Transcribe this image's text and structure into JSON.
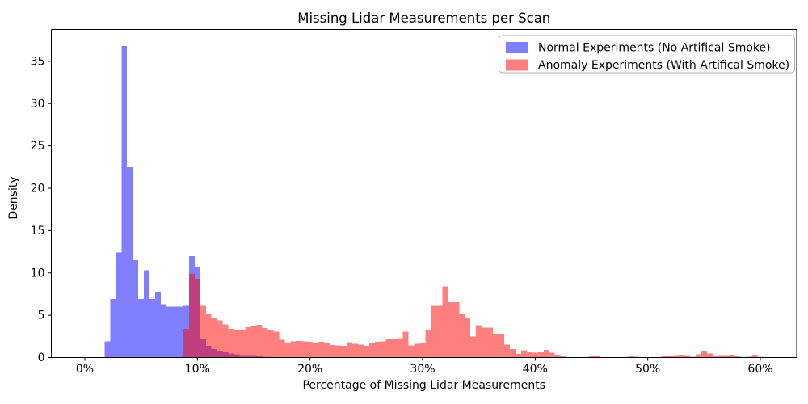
{
  "chart_data": {
    "type": "histogram",
    "title": "Missing Lidar Measurements per Scan",
    "xlabel": "Percentage of Missing Lidar Measurements",
    "ylabel": "Density",
    "grid": false,
    "xlim_pct": [
      -3,
      63.2
    ],
    "ylim": [
      0,
      38.8
    ],
    "xticks": {
      "values": [
        0,
        10,
        20,
        30,
        40,
        50,
        60
      ],
      "labels": [
        "0%",
        "10%",
        "20%",
        "30%",
        "40%",
        "50%",
        "60%"
      ]
    },
    "yticks": [
      0,
      5,
      10,
      15,
      20,
      25,
      30,
      35
    ],
    "bar_alpha": 0.5,
    "legend": {
      "position": "upper right",
      "entries": [
        {
          "label": "Normal Experiments (No Artifical Smoke)",
          "color": "#0000ff"
        },
        {
          "label": "Anomaly Experiments (With Artifical Smoke)",
          "color": "#ff0000"
        }
      ]
    },
    "series": [
      {
        "name": "Normal Experiments (No Artifical Smoke)",
        "color": "#0000ff",
        "bin_start_pct": 1.75,
        "bin_width_pct": 0.5,
        "densities": [
          1.9,
          6.9,
          12.4,
          36.8,
          22.5,
          11.5,
          6.9,
          10.3,
          6.9,
          7.7,
          6.3,
          6.0,
          6.0,
          6.0,
          6.1,
          12.0,
          10.7,
          2.2,
          1.4,
          1.0,
          0.8,
          0.6,
          0.5,
          0.4,
          0.3,
          0.3,
          0.3,
          0.2
        ]
      },
      {
        "name": "Anomaly Experiments (With Artifical Smoke)",
        "color": "#ff0000",
        "bin_start_pct": 8.75,
        "bin_width_pct": 0.5,
        "densities": [
          3.4,
          9.9,
          9.3,
          6.1,
          5.1,
          4.65,
          4.4,
          3.9,
          3.4,
          3.2,
          3.3,
          3.6,
          3.7,
          3.85,
          3.5,
          3.3,
          3.05,
          2.1,
          1.7,
          1.9,
          1.95,
          1.9,
          1.85,
          1.7,
          1.85,
          1.65,
          1.5,
          1.45,
          1.4,
          1.8,
          1.6,
          1.55,
          1.4,
          1.75,
          1.85,
          1.9,
          2.15,
          2.15,
          2.3,
          3.05,
          1.45,
          1.6,
          1.7,
          3.2,
          6.1,
          6.1,
          8.4,
          6.55,
          6.55,
          5.1,
          4.65,
          2.5,
          3.8,
          3.55,
          3.55,
          2.8,
          2.8,
          1.55,
          1.0,
          0.45,
          0.85,
          0.6,
          0.57,
          0.6,
          0.9,
          0.55,
          0.35,
          0.2,
          0,
          0,
          0,
          0,
          0.2,
          0.2,
          0,
          0,
          0,
          0,
          0,
          0.2,
          0.1,
          0,
          0,
          0,
          0,
          0.2,
          0.25,
          0.3,
          0.35,
          0.3,
          0.1,
          0.4,
          0.7,
          0.5,
          0.15,
          0.3,
          0.3,
          0.35,
          0.2,
          0.05,
          0.1,
          0.35,
          0.1
        ]
      }
    ]
  }
}
